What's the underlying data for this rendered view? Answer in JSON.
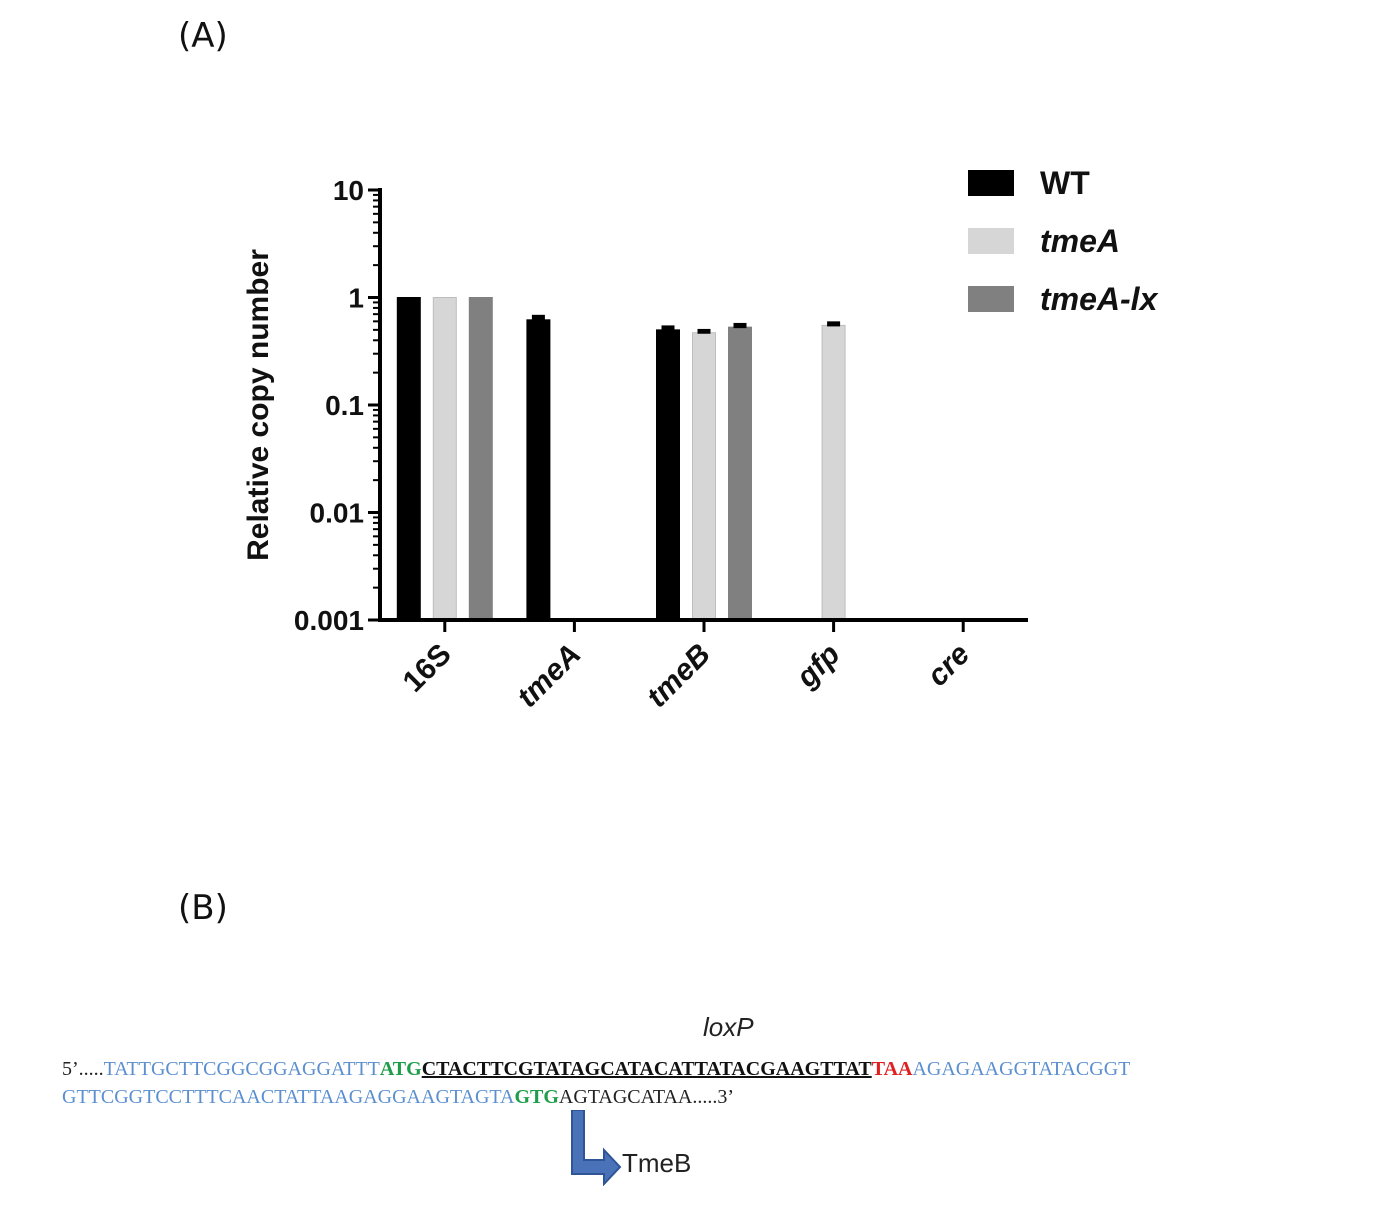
{
  "panel_a_label": "(A)",
  "panel_b_label": "(B)",
  "chart_data": {
    "type": "bar",
    "ylabel": "Relative copy number",
    "yscale": "log",
    "ylim": [
      0.001,
      10
    ],
    "yticks": [
      "10",
      "1",
      "0.1",
      "0.01",
      "0.001"
    ],
    "categories": [
      "16S",
      "tmeA",
      "tmeB",
      "gfp",
      "cre"
    ],
    "legend_position": "top-right",
    "series": [
      {
        "name": "WT",
        "color": "#000000",
        "values": [
          1.0,
          0.62,
          0.5,
          null,
          null
        ],
        "errors": [
          0,
          0.07,
          0.05,
          null,
          null
        ]
      },
      {
        "name": "tmeA",
        "color": "#d6d6d6",
        "values": [
          1.0,
          null,
          0.47,
          0.55,
          null
        ],
        "errors": [
          0,
          null,
          0.04,
          0.05,
          null
        ]
      },
      {
        "name": "tmeA-lx",
        "color": "#808080",
        "values": [
          1.0,
          null,
          0.53,
          null,
          null
        ],
        "errors": [
          0,
          null,
          0.05,
          null,
          null
        ]
      }
    ]
  },
  "sequence": {
    "loxp_label": "loxP",
    "line1": [
      {
        "text": "5’.....",
        "style": "black"
      },
      {
        "text": "TATTGCTTCGGCGGAGGATTT",
        "style": "blue"
      },
      {
        "text": "ATG",
        "style": "green"
      },
      {
        "text": "CTACTTCGTATAGCATACATTATACGAAGTTAT",
        "style": "loxp"
      },
      {
        "text": "TAA",
        "style": "red"
      },
      {
        "text": "AGAGAAGGTATACGGT",
        "style": "blue"
      }
    ],
    "line2": [
      {
        "text": "GTTCGGTCCTTTCAACTATTAAGAGGAAGTAGTA",
        "style": "blue"
      },
      {
        "text": "GTG",
        "style": "green"
      },
      {
        "text": "AGTAGCATAA.....3’",
        "style": "black"
      }
    ],
    "arrow_label": "TmeB",
    "colors": {
      "blue": "#5b8fd0",
      "green": "#1f9e4a",
      "red": "#e02020",
      "arrow": "#4a72b8"
    }
  }
}
